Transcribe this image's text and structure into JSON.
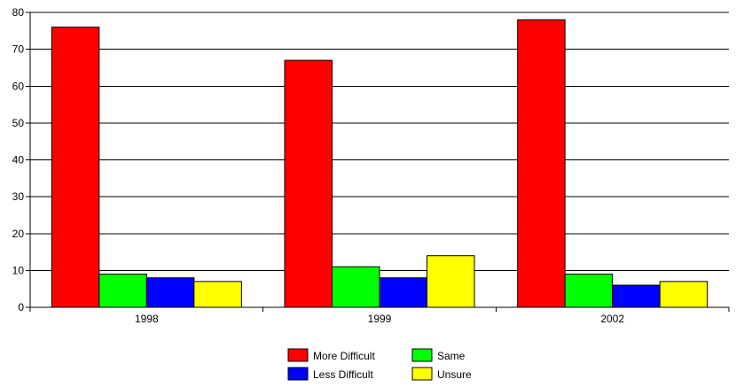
{
  "chart_data": {
    "type": "bar",
    "title": "",
    "xlabel": "",
    "ylabel": "",
    "ylim": [
      0,
      80
    ],
    "yticks": [
      0,
      10,
      20,
      30,
      40,
      50,
      60,
      70,
      80
    ],
    "grid": true,
    "legend_position": "bottom-center",
    "categories": [
      "1998",
      "1999",
      "2002"
    ],
    "series": [
      {
        "name": "More Difficult",
        "color": "#ff0000",
        "values": [
          76,
          67,
          78
        ]
      },
      {
        "name": "Same",
        "color": "#00ff00",
        "values": [
          9,
          11,
          9
        ]
      },
      {
        "name": "Less Difficult",
        "color": "#0000ff",
        "values": [
          8,
          8,
          6
        ]
      },
      {
        "name": "Unsure",
        "color": "#ffff00",
        "values": [
          7,
          14,
          7
        ]
      }
    ]
  }
}
